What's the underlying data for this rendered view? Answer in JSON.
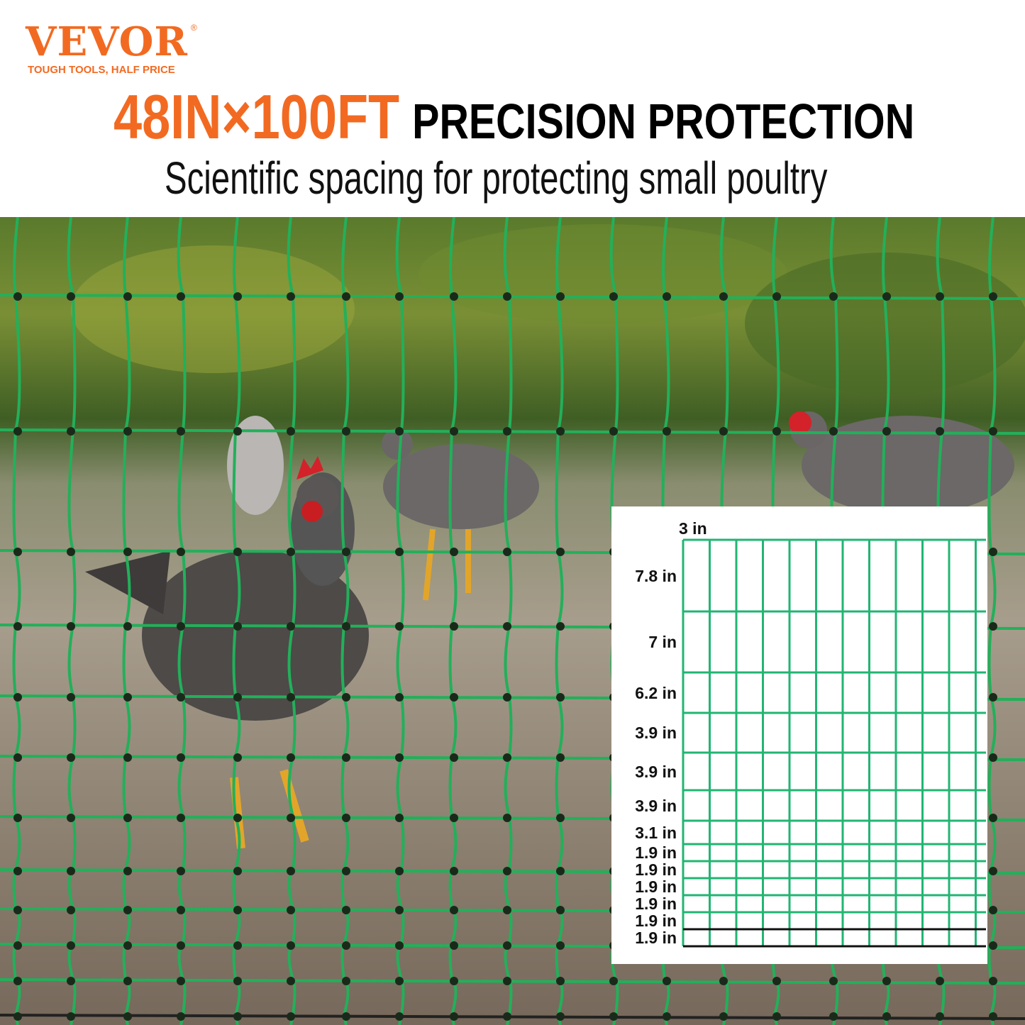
{
  "brand": {
    "name": "VEVOR",
    "registered": "®",
    "tagline": "TOUGH TOOLS, HALF PRICE",
    "color": "#f26a21"
  },
  "headline": {
    "size": "48IN×100FT",
    "text": "PRECISION PROTECTION"
  },
  "subtitle": "Scientific spacing for protecting small poultry",
  "photo": {
    "subject": "chickens behind green poultry netting",
    "net_color": "#22b05a"
  },
  "spacing_diagram": {
    "horizontal_label": "3 in",
    "vertical_labels": [
      "7.8 in",
      "7 in",
      "6.2 in",
      "3.9 in",
      "3.9 in",
      "3.9 in",
      "3.1 in",
      "1.9 in",
      "1.9 in",
      "1.9 in",
      "1.9 in",
      "1.9 in",
      "1.9 in"
    ],
    "grid_color": "#22b573"
  }
}
